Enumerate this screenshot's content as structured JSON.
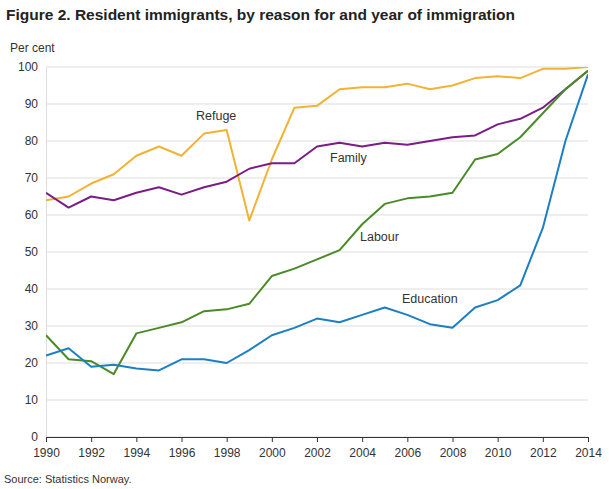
{
  "chart_data": {
    "type": "line",
    "title": "Figure 2. Resident immigrants, by reason for and year of immigration",
    "y_label": "Per cent",
    "source": "Source: Statistics Norway.",
    "x": [
      1990,
      1991,
      1992,
      1993,
      1994,
      1995,
      1996,
      1997,
      1998,
      1999,
      2000,
      2001,
      2002,
      2003,
      2004,
      2005,
      2006,
      2007,
      2008,
      2009,
      2010,
      2011,
      2012,
      2013,
      2014
    ],
    "xlim": [
      1990,
      2014
    ],
    "xticks": [
      1990,
      1992,
      1994,
      1996,
      1998,
      2000,
      2002,
      2004,
      2006,
      2008,
      2010,
      2012,
      2014
    ],
    "ylim": [
      0,
      100
    ],
    "yticks": [
      0,
      10,
      20,
      30,
      40,
      50,
      60,
      70,
      80,
      90,
      100
    ],
    "grid": true,
    "series": [
      {
        "name": "Refuge",
        "color": "#f2b233",
        "values": [
          64,
          65,
          68.5,
          71,
          76,
          78.5,
          76,
          82,
          83,
          58.5,
          75,
          89,
          89.5,
          94,
          94.5,
          94.5,
          95.5,
          94,
          95,
          97,
          97.5,
          97,
          99.5,
          99.5,
          100
        ]
      },
      {
        "name": "Family",
        "color": "#7a1d86",
        "values": [
          66,
          62,
          65,
          64,
          66,
          67.5,
          65.5,
          67.5,
          69,
          72.5,
          74,
          74,
          78.5,
          79.5,
          78.5,
          79.5,
          79,
          80,
          81,
          81.5,
          84.5,
          86,
          89,
          94,
          99
        ]
      },
      {
        "name": "Labour",
        "color": "#4a8a27",
        "values": [
          27.5,
          21,
          20.5,
          17,
          28,
          29.5,
          31,
          34,
          34.5,
          36,
          43.5,
          45.5,
          48,
          50.5,
          57.5,
          63,
          64.5,
          65,
          66,
          75,
          76.5,
          81,
          87.5,
          94,
          99
        ]
      },
      {
        "name": "Education",
        "color": "#1b7fc4",
        "values": [
          22,
          24,
          19,
          19.5,
          18.5,
          18,
          21,
          21,
          20,
          23.5,
          27.5,
          29.5,
          32,
          31,
          33,
          35,
          33,
          30.5,
          29.5,
          35,
          37,
          41,
          56.5,
          80,
          98
        ]
      }
    ]
  }
}
